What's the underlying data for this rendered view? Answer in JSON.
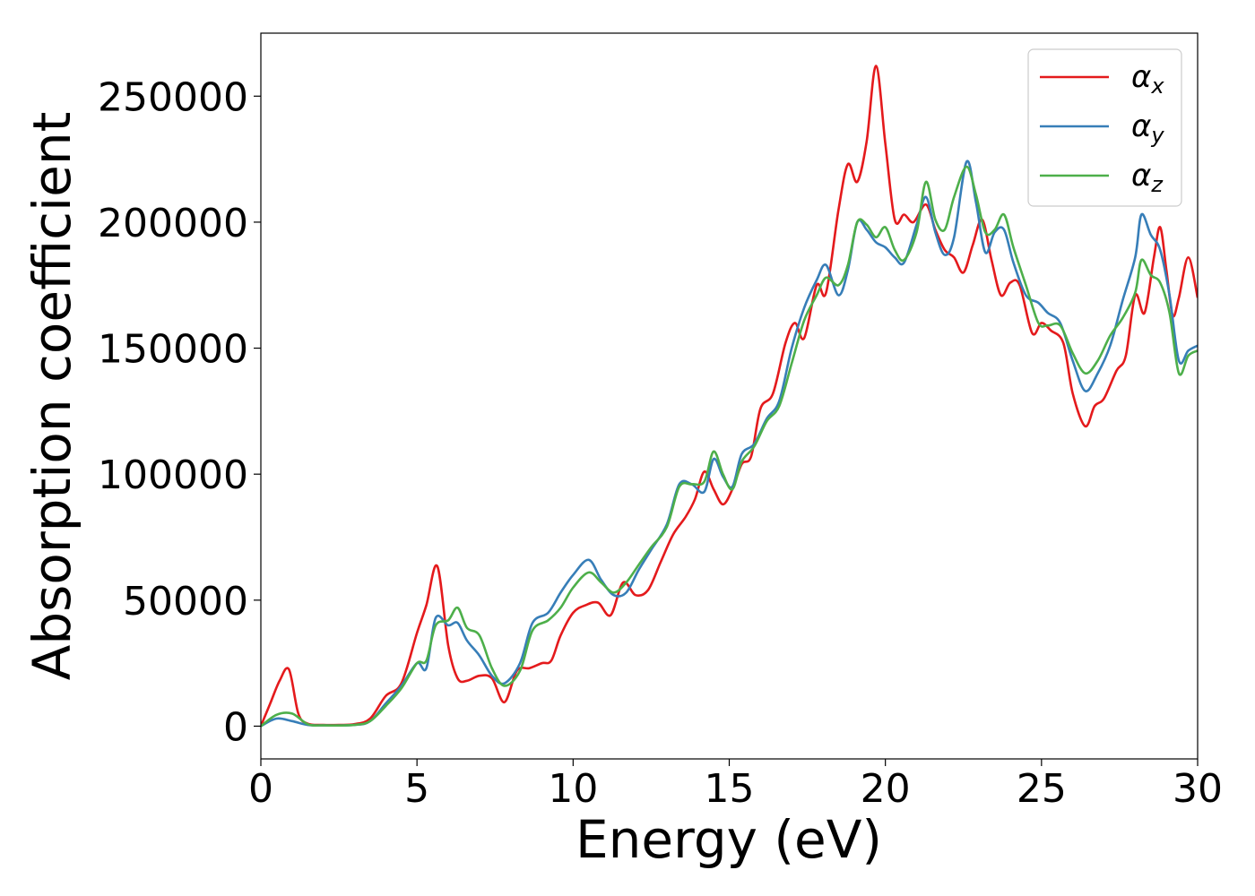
{
  "chart_data": {
    "type": "line",
    "xlabel": "Energy (eV)",
    "ylabel": "Absorption coefficient",
    "xlim": [
      0,
      30
    ],
    "ylim": [
      -13000,
      275000
    ],
    "x_ticks": [
      0,
      5,
      10,
      15,
      20,
      25,
      30
    ],
    "y_ticks": [
      0,
      50000,
      100000,
      150000,
      200000,
      250000
    ],
    "legend_position": "top-right",
    "grid": false,
    "series": [
      {
        "name": "αx",
        "symbol": "α",
        "sub": "x",
        "color": "#e41a1c",
        "x": [
          0,
          0.3,
          0.6,
          0.9,
          1.2,
          1.5,
          2,
          2.5,
          3,
          3.5,
          4,
          4.5,
          5,
          5.3,
          5.65,
          6,
          6.3,
          6.6,
          7,
          7.4,
          7.8,
          8.2,
          8.6,
          9,
          9.3,
          9.6,
          10,
          10.4,
          10.8,
          11.2,
          11.6,
          12,
          12.4,
          12.8,
          13.2,
          13.6,
          13.9,
          14.2,
          14.5,
          14.8,
          15.1,
          15.4,
          15.7,
          16,
          16.4,
          16.8,
          17.1,
          17.4,
          17.8,
          18.1,
          18.5,
          18.8,
          19.1,
          19.4,
          19.7,
          20,
          20.3,
          20.6,
          20.9,
          21.3,
          21.6,
          21.9,
          22.2,
          22.5,
          22.8,
          23.1,
          23.4,
          23.7,
          24,
          24.3,
          24.7,
          25,
          25.3,
          25.7,
          26,
          26.4,
          26.7,
          27,
          27.4,
          27.7,
          28,
          28.3,
          28.6,
          28.8,
          29,
          29.2,
          29.4,
          29.7,
          30
        ],
        "values": [
          0,
          9000,
          18000,
          22500,
          5000,
          1000,
          500,
          500,
          800,
          3000,
          12000,
          17000,
          37000,
          48000,
          63500,
          32000,
          19000,
          18000,
          20000,
          19000,
          9500,
          22000,
          23000,
          25000,
          26000,
          36000,
          45000,
          48000,
          49000,
          44000,
          57000,
          52000,
          54000,
          65000,
          76000,
          83000,
          90000,
          101000,
          94000,
          88000,
          94000,
          104000,
          107000,
          126000,
          132000,
          152000,
          160000,
          154000,
          175000,
          172000,
          205000,
          223000,
          216000,
          232000,
          262000,
          231000,
          201000,
          203000,
          200000,
          207000,
          197000,
          189000,
          186000,
          180000,
          191000,
          201000,
          185000,
          171000,
          176000,
          175000,
          156000,
          160000,
          157000,
          152000,
          132000,
          119000,
          127000,
          130000,
          141000,
          147000,
          171000,
          164000,
          186000,
          198000,
          181000,
          163000,
          170000,
          186000,
          170000
        ]
      },
      {
        "name": "αy",
        "symbol": "α",
        "sub": "y",
        "color": "#377eb8",
        "x": [
          0,
          0.5,
          1,
          1.5,
          2,
          3,
          3.5,
          4,
          4.5,
          5,
          5.3,
          5.6,
          6,
          6.3,
          6.6,
          7,
          7.4,
          7.8,
          8.3,
          8.7,
          9.2,
          9.6,
          10,
          10.5,
          10.9,
          11.3,
          11.7,
          12.1,
          12.5,
          13,
          13.4,
          13.8,
          14.2,
          14.5,
          14.8,
          15.1,
          15.4,
          15.8,
          16.2,
          16.6,
          17,
          17.4,
          17.8,
          18.1,
          18.5,
          18.8,
          19.1,
          19.4,
          19.7,
          20,
          20.3,
          20.6,
          21,
          21.3,
          21.6,
          21.9,
          22.2,
          22.6,
          22.9,
          23.2,
          23.5,
          23.8,
          24.1,
          24.5,
          24.9,
          25.2,
          25.6,
          26,
          26.4,
          26.8,
          27.2,
          27.6,
          28,
          28.2,
          28.5,
          28.8,
          29.1,
          29.4,
          29.7,
          30
        ],
        "values": [
          0,
          3000,
          2000,
          500,
          300,
          500,
          2000,
          9000,
          16000,
          25000,
          23000,
          43000,
          40000,
          41000,
          34000,
          28000,
          20000,
          17000,
          25000,
          41000,
          45000,
          53000,
          60000,
          66000,
          58000,
          52000,
          53000,
          62000,
          70000,
          80000,
          96000,
          96000,
          93000,
          106000,
          99000,
          95000,
          108000,
          112000,
          122000,
          129000,
          150000,
          166000,
          177000,
          183000,
          171000,
          181000,
          200000,
          197000,
          192000,
          190000,
          186000,
          184000,
          199000,
          210000,
          196000,
          187000,
          194000,
          224000,
          208000,
          188000,
          196000,
          197000,
          184000,
          171000,
          168000,
          164000,
          160000,
          145000,
          133000,
          140000,
          151000,
          169000,
          186000,
          203000,
          195000,
          189000,
          171000,
          145000,
          149000,
          151000
        ]
      },
      {
        "name": "αz",
        "symbol": "α",
        "sub": "z",
        "color": "#4daf4a",
        "x": [
          0,
          0.5,
          1,
          1.5,
          2,
          3,
          3.5,
          4,
          4.5,
          5,
          5.3,
          5.6,
          6,
          6.3,
          6.6,
          7,
          7.4,
          7.8,
          8.3,
          8.7,
          9.2,
          9.6,
          10,
          10.5,
          10.9,
          11.3,
          11.7,
          12.1,
          12.5,
          13,
          13.4,
          13.8,
          14.2,
          14.5,
          14.8,
          15.1,
          15.4,
          15.8,
          16.2,
          16.6,
          17,
          17.4,
          17.8,
          18.1,
          18.5,
          18.8,
          19.1,
          19.4,
          19.7,
          20,
          20.3,
          20.6,
          21,
          21.3,
          21.6,
          21.9,
          22.2,
          22.6,
          22.9,
          23.2,
          23.5,
          23.8,
          24.1,
          24.5,
          24.9,
          25.2,
          25.6,
          26,
          26.4,
          26.8,
          27.2,
          27.6,
          28,
          28.2,
          28.5,
          28.8,
          29.1,
          29.4,
          29.7,
          30
        ],
        "values": [
          0,
          4500,
          5000,
          800,
          300,
          500,
          2000,
          8000,
          15000,
          25000,
          26000,
          40000,
          42000,
          47000,
          39000,
          36000,
          23000,
          16000,
          22000,
          38000,
          42000,
          47000,
          55000,
          61000,
          57000,
          53000,
          57000,
          64000,
          71000,
          79000,
          95000,
          96000,
          97000,
          109000,
          100000,
          94000,
          105000,
          111000,
          121000,
          127000,
          144000,
          161000,
          171000,
          178000,
          175000,
          183000,
          200000,
          199000,
          194000,
          198000,
          189000,
          185000,
          196000,
          216000,
          201000,
          197000,
          210000,
          222000,
          211000,
          196000,
          197000,
          203000,
          190000,
          175000,
          160000,
          159000,
          159000,
          148000,
          140000,
          145000,
          155000,
          162000,
          172000,
          185000,
          179000,
          176000,
          164000,
          140000,
          147000,
          149000
        ]
      }
    ]
  }
}
